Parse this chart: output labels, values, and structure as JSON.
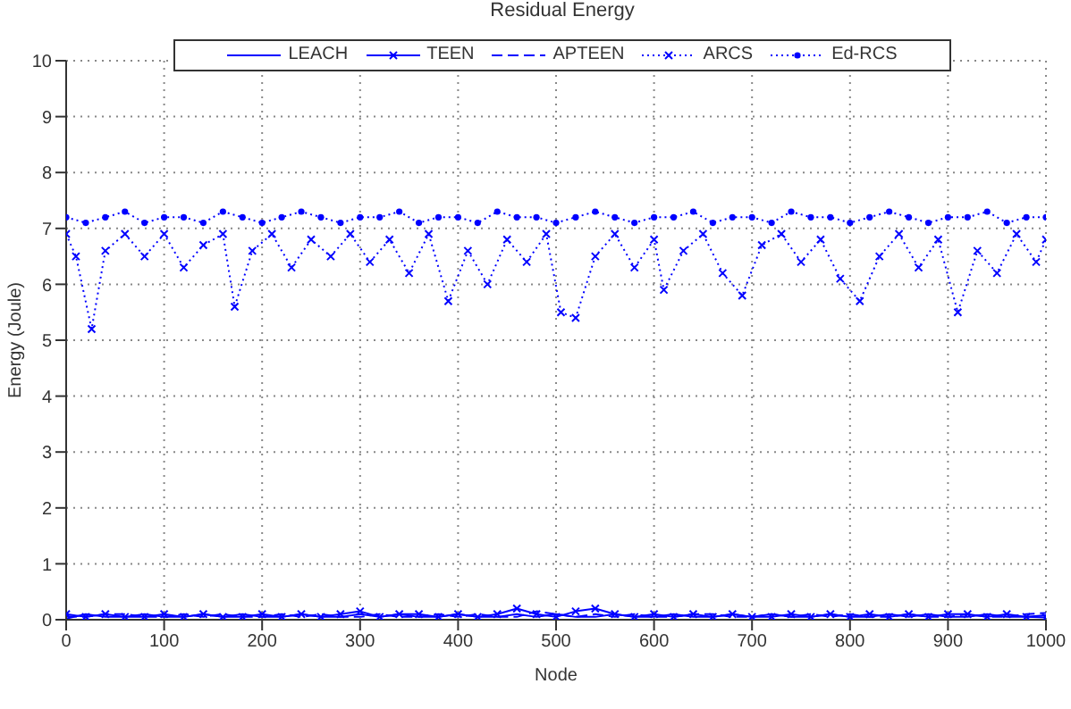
{
  "chart_data": {
    "type": "line",
    "title": "Residual Energy",
    "xlabel": "Node",
    "ylabel": "Energy (Joule)",
    "x": [
      0,
      20,
      40,
      60,
      80,
      100,
      120,
      140,
      160,
      180,
      200,
      220,
      240,
      260,
      280,
      300,
      320,
      340,
      360,
      380,
      400,
      420,
      440,
      460,
      480,
      500,
      520,
      540,
      560,
      580,
      600,
      620,
      640,
      660,
      680,
      700,
      720,
      740,
      760,
      780,
      800,
      820,
      840,
      860,
      880,
      900,
      920,
      940,
      960,
      980,
      1000
    ],
    "series": [
      {
        "name": "LEACH",
        "color": "#0000ff",
        "line_style": "solid",
        "marker": "none",
        "values": [
          0.02,
          0.1,
          0.05,
          0.05,
          0.1,
          0.05,
          0.05,
          0.1,
          0.05,
          0.1,
          0.05,
          0.05,
          0.1,
          0.05,
          0.05,
          0.1,
          0.05,
          0.1,
          0.05,
          0.05,
          0.1,
          0.05,
          0.05,
          0.1,
          0.05,
          0.1,
          0.05,
          0.05,
          0.1,
          0.05,
          0.05,
          0.1,
          0.05,
          0.05,
          0.1,
          0.05,
          0.1,
          0.05,
          0.05,
          0.1,
          0.05,
          0.05,
          0.1,
          0.05,
          0.1,
          0.05,
          0.05,
          0.1,
          0.05,
          0.05,
          0.08
        ]
      },
      {
        "name": "TEEN",
        "color": "#0000ff",
        "line_style": "solid",
        "marker": "cross",
        "values": [
          0.1,
          0.05,
          0.1,
          0.05,
          0.05,
          0.1,
          0.05,
          0.1,
          0.05,
          0.05,
          0.1,
          0.05,
          0.1,
          0.05,
          0.1,
          0.15,
          0.05,
          0.1,
          0.1,
          0.05,
          0.1,
          0.05,
          0.1,
          0.2,
          0.1,
          0.05,
          0.15,
          0.2,
          0.1,
          0.05,
          0.1,
          0.05,
          0.1,
          0.05,
          0.1,
          0.05,
          0.05,
          0.1,
          0.05,
          0.1,
          0.05,
          0.1,
          0.05,
          0.1,
          0.05,
          0.1,
          0.1,
          0.05,
          0.1,
          0.05,
          0.04
        ]
      },
      {
        "name": "APTEEN",
        "color": "#0000ff",
        "line_style": "dashed",
        "marker": "none",
        "values": [
          0.06,
          0.05,
          0.1,
          0.1,
          0.05,
          0.05,
          0.1,
          0.05,
          0.1,
          0.05,
          0.05,
          0.1,
          0.05,
          0.1,
          0.05,
          0.05,
          0.1,
          0.05,
          0.05,
          0.1,
          0.05,
          0.1,
          0.05,
          0.05,
          0.15,
          0.1,
          0.05,
          0.1,
          0.05,
          0.1,
          0.05,
          0.05,
          0.1,
          0.1,
          0.05,
          0.05,
          0.1,
          0.05,
          0.1,
          0.05,
          0.1,
          0.05,
          0.05,
          0.1,
          0.05,
          0.05,
          0.1,
          0.05,
          0.05,
          0.1,
          0.12
        ]
      },
      {
        "name": "ARCS",
        "color": "#0000ff",
        "line_style": "dotted",
        "marker": "cross",
        "x": [
          0,
          10,
          26,
          40,
          60,
          80,
          100,
          120,
          140,
          160,
          172,
          190,
          210,
          230,
          250,
          270,
          290,
          310,
          330,
          350,
          370,
          390,
          410,
          430,
          450,
          470,
          490,
          505,
          520,
          540,
          560,
          580,
          600,
          610,
          630,
          650,
          670,
          690,
          710,
          730,
          750,
          770,
          790,
          810,
          830,
          850,
          870,
          890,
          910,
          930,
          950,
          970,
          990,
          1000
        ],
        "values": [
          6.9,
          6.5,
          5.2,
          6.6,
          6.9,
          6.5,
          6.9,
          6.3,
          6.7,
          6.9,
          5.6,
          6.6,
          6.9,
          6.3,
          6.8,
          6.5,
          6.9,
          6.4,
          6.8,
          6.2,
          6.9,
          5.7,
          6.6,
          6.0,
          6.8,
          6.4,
          6.9,
          5.5,
          5.4,
          6.5,
          6.9,
          6.3,
          6.8,
          5.9,
          6.6,
          6.9,
          6.2,
          5.8,
          6.7,
          6.9,
          6.4,
          6.8,
          6.1,
          5.7,
          6.5,
          6.9,
          6.3,
          6.8,
          5.5,
          6.6,
          6.2,
          6.9,
          6.4,
          6.8
        ]
      },
      {
        "name": "Ed-RCS",
        "color": "#0000ff",
        "line_style": "dotted",
        "marker": "circle",
        "values": [
          7.2,
          7.1,
          7.2,
          7.3,
          7.1,
          7.2,
          7.2,
          7.1,
          7.3,
          7.2,
          7.1,
          7.2,
          7.3,
          7.2,
          7.1,
          7.2,
          7.2,
          7.3,
          7.1,
          7.2,
          7.2,
          7.1,
          7.3,
          7.2,
          7.2,
          7.1,
          7.2,
          7.3,
          7.2,
          7.1,
          7.2,
          7.2,
          7.3,
          7.1,
          7.2,
          7.2,
          7.1,
          7.3,
          7.2,
          7.2,
          7.1,
          7.2,
          7.3,
          7.2,
          7.1,
          7.2,
          7.2,
          7.3,
          7.1,
          7.2,
          7.2
        ]
      }
    ],
    "xlim": [
      0,
      1000
    ],
    "xticks": [
      0,
      100,
      200,
      300,
      400,
      500,
      600,
      700,
      800,
      900,
      1000
    ],
    "ylim": [
      0,
      10
    ],
    "yticks": [
      0,
      1,
      2,
      3,
      4,
      5,
      6,
      7,
      8,
      9,
      10
    ],
    "grid": true,
    "legend": "top"
  }
}
